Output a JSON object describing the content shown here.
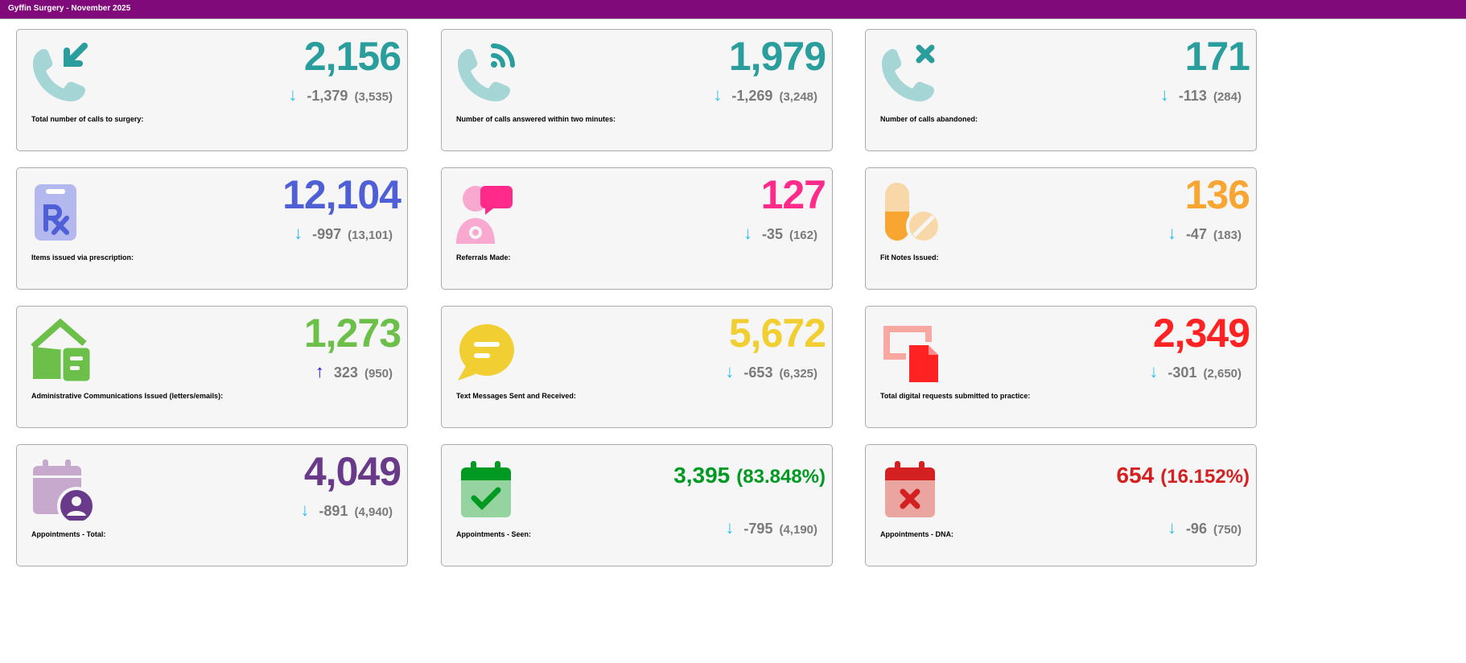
{
  "header": {
    "title": "Gyffin Surgery - November 2025"
  },
  "colors": {
    "header": "#800a7a",
    "down_arrow": "#29c0f0",
    "up_arrow": "#2211ee",
    "change_text": "#7a7a7a"
  },
  "cards": [
    {
      "label": "Total number of calls to surgery:",
      "value": "2,156",
      "change": "-1,379",
      "previous": "(3,535)",
      "direction": "down",
      "icon": "phone-incoming-icon",
      "color": "#2a9d9d",
      "light": "#a6d5d5"
    },
    {
      "label": "Number of calls answered within two minutes:",
      "value": "1,979",
      "change": "-1,269",
      "previous": "(3,248)",
      "direction": "down",
      "icon": "phone-answered-icon",
      "color": "#2a9d9d",
      "light": "#a6d5d5"
    },
    {
      "label": "Number of calls abandoned:",
      "value": "171",
      "change": "-113",
      "previous": "(284)",
      "direction": "down",
      "icon": "phone-abandoned-icon",
      "color": "#2a9d9d",
      "light": "#a6d5d5"
    },
    {
      "label": "Items issued via prescription:",
      "value": "12,104",
      "change": "-997",
      "previous": "(13,101)",
      "direction": "down",
      "icon": "prescription-icon",
      "color": "#4f5fd6",
      "light": "#b3b8ee"
    },
    {
      "label": "Referrals Made:",
      "value": "127",
      "change": "-35",
      "previous": "(162)",
      "direction": "down",
      "icon": "referral-icon",
      "color": "#ff2a8a",
      "light": "#f9a8cf"
    },
    {
      "label": "Fit Notes Issued:",
      "value": "136",
      "change": "-47",
      "previous": "(183)",
      "direction": "down",
      "icon": "pills-icon",
      "color": "#f9a531",
      "light": "#f8d8a8"
    },
    {
      "label": "Administrative Communications Issued (letters/emails):",
      "value": "1,273",
      "change": "323",
      "previous": "(950)",
      "direction": "up",
      "icon": "letter-icon",
      "color": "#6cc04a",
      "light": "#6cc04a"
    },
    {
      "label": "Text Messages Sent and Received:",
      "value": "5,672",
      "change": "-653",
      "previous": "(6,325)",
      "direction": "down",
      "icon": "message-icon",
      "color": "#f1cf33",
      "light": "#f1cf33"
    },
    {
      "label": "Total digital requests submitted to practice:",
      "value": "2,349",
      "change": "-301",
      "previous": "(2,650)",
      "direction": "down",
      "icon": "digital-request-icon",
      "color": "#ff2222",
      "light": "#f8a8a0"
    },
    {
      "label": "Appointments - Total:",
      "value": "4,049",
      "change": "-891",
      "previous": "(4,940)",
      "direction": "down",
      "icon": "calendar-user-icon",
      "color": "#6a3a8a",
      "light": "#c6a9cc"
    },
    {
      "label": "Appointments - Seen:",
      "value": "3,395",
      "percent": "(83.848%)",
      "change": "-795",
      "previous": "(4,190)",
      "direction": "down",
      "icon": "calendar-check-icon",
      "color": "#009a22",
      "light": "#95d3a0"
    },
    {
      "label": "Appointments - DNA:",
      "value": "654",
      "percent": "(16.152%)",
      "change": "-96",
      "previous": "(750)",
      "direction": "down",
      "icon": "calendar-x-icon",
      "color": "#d42020",
      "light": "#eba5a0"
    }
  ]
}
